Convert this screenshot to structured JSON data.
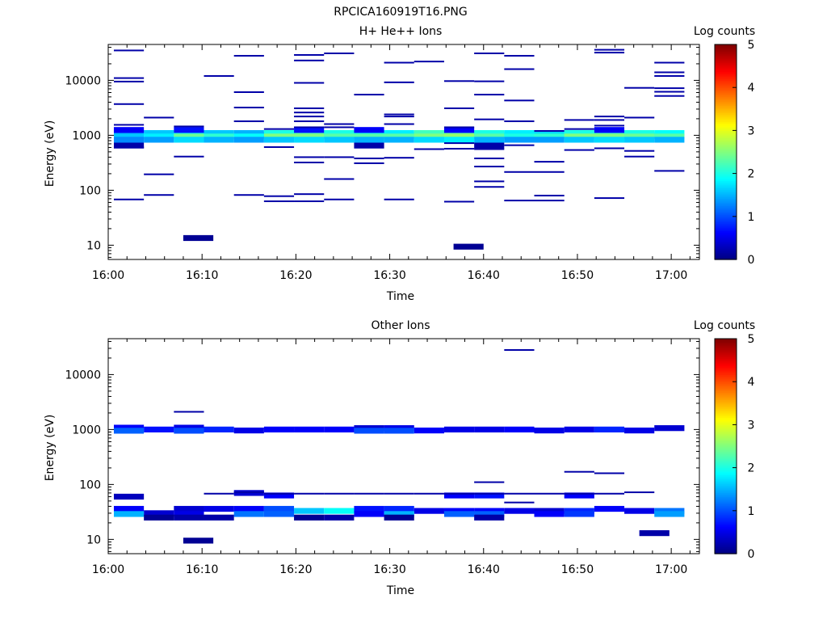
{
  "file_title": "RPCICA160919T16.PNG",
  "colors": {
    "axis": "#000000",
    "background": "#ffffff",
    "colormap": "jet"
  },
  "chart_data": [
    {
      "type": "heatmap",
      "title": "H+ He++ Ions",
      "xlabel": "Time",
      "ylabel": "Energy (eV)",
      "x_ticks": [
        "16:00",
        "16:10",
        "16:20",
        "16:30",
        "16:40",
        "16:50",
        "17:00"
      ],
      "x_range": [
        "16:00",
        "17:03"
      ],
      "y_ticks": [
        "10",
        "100",
        "1000",
        "10000"
      ],
      "y_scale": "log",
      "y_range_eV": [
        5.5,
        45000
      ],
      "colorbar": {
        "label": "Log counts",
        "min": 0,
        "max": 5,
        "ticks": [
          "0",
          "1",
          "2",
          "3",
          "4",
          "5"
        ]
      },
      "cell_width_min": 3.2,
      "cells": [
        [
          16.6,
          1000,
          0.9
        ],
        [
          19.8,
          1000,
          1.9
        ],
        [
          23.0,
          1000,
          2.6
        ],
        [
          26.2,
          1000,
          2.6
        ],
        [
          29.4,
          1000,
          2.6
        ],
        [
          32.6,
          1000,
          2.8
        ],
        [
          35.8,
          1000,
          2.8
        ],
        [
          39.0,
          1000,
          2.6
        ],
        [
          42.2,
          1000,
          2.6
        ],
        [
          45.4,
          1000,
          2.2
        ],
        [
          48.6,
          1000,
          2.4
        ],
        [
          51.8,
          1000,
          2.6
        ],
        [
          55.0,
          1000,
          2.7
        ],
        [
          58.2,
          1000,
          2.6
        ],
        [
          2.2,
          1100,
          1.4
        ],
        [
          5.4,
          1100,
          1.6
        ],
        [
          8.6,
          1100,
          1.8
        ],
        [
          11.8,
          1100,
          1.6
        ],
        [
          15.0,
          1100,
          1.5
        ],
        [
          18.2,
          1100,
          2.0
        ],
        [
          21.4,
          1100,
          2.2
        ],
        [
          24.6,
          1100,
          2.0
        ],
        [
          27.8,
          1100,
          1.9
        ],
        [
          31.0,
          1100,
          1.8
        ],
        [
          34.2,
          1100,
          2.2
        ],
        [
          37.4,
          1100,
          2.3
        ],
        [
          40.6,
          1100,
          2.0
        ],
        [
          43.8,
          1100,
          1.8
        ],
        [
          47.0,
          1100,
          1.7
        ],
        [
          50.2,
          1100,
          2.0
        ],
        [
          53.4,
          1100,
          2.1
        ],
        [
          56.6,
          1100,
          2.0
        ],
        [
          59.8,
          1100,
          1.9
        ],
        [
          2.2,
          950,
          1.6
        ],
        [
          5.4,
          950,
          1.8
        ],
        [
          8.6,
          950,
          2.4
        ],
        [
          11.8,
          950,
          2.1
        ],
        [
          15.0,
          950,
          1.9
        ],
        [
          18.2,
          950,
          2.5
        ],
        [
          21.4,
          950,
          2.5
        ],
        [
          24.6,
          950,
          2.3
        ],
        [
          27.8,
          950,
          2.3
        ],
        [
          31.0,
          950,
          2.3
        ],
        [
          34.2,
          950,
          2.5
        ],
        [
          37.4,
          950,
          2.6
        ],
        [
          40.6,
          950,
          2.3
        ],
        [
          43.8,
          950,
          2.0
        ],
        [
          47.0,
          950,
          2.1
        ],
        [
          50.2,
          950,
          2.5
        ],
        [
          53.4,
          950,
          2.5
        ],
        [
          56.6,
          950,
          2.4
        ],
        [
          59.8,
          950,
          2.3
        ],
        [
          2.2,
          830,
          1.3
        ],
        [
          5.4,
          830,
          1.4
        ],
        [
          8.6,
          830,
          1.7
        ],
        [
          11.8,
          830,
          1.5
        ],
        [
          15.0,
          830,
          1.4
        ],
        [
          18.2,
          830,
          1.6
        ],
        [
          21.4,
          830,
          1.7
        ],
        [
          24.6,
          830,
          1.6
        ],
        [
          27.8,
          830,
          1.5
        ],
        [
          31.0,
          830,
          1.5
        ],
        [
          34.2,
          830,
          1.7
        ],
        [
          37.4,
          830,
          1.8
        ],
        [
          40.6,
          830,
          1.5
        ],
        [
          43.8,
          830,
          1.4
        ],
        [
          47.0,
          830,
          1.4
        ],
        [
          50.2,
          830,
          1.6
        ],
        [
          53.4,
          830,
          1.7
        ],
        [
          56.6,
          830,
          1.6
        ],
        [
          59.8,
          830,
          1.5
        ],
        [
          2.2,
          1250,
          0.6
        ],
        [
          8.6,
          1250,
          0.7
        ],
        [
          21.4,
          1250,
          0.7
        ],
        [
          27.8,
          1250,
          0.6
        ],
        [
          37.4,
          1250,
          0.6
        ],
        [
          53.4,
          1250,
          0.6
        ],
        [
          2.2,
          650,
          0.2
        ],
        [
          27.8,
          650,
          0.2
        ],
        [
          40.6,
          650,
          0.2
        ],
        [
          9.6,
          13.5,
          0.1
        ],
        [
          38.4,
          9.4,
          0.1
        ]
      ],
      "lines": [
        [
          2.2,
          35000
        ],
        [
          2.2,
          11000
        ],
        [
          2.2,
          9500
        ],
        [
          2.2,
          3700
        ],
        [
          2.2,
          1550
        ],
        [
          2.2,
          600
        ],
        [
          2.2,
          68
        ],
        [
          5.4,
          2100
        ],
        [
          5.4,
          195
        ],
        [
          5.4,
          82
        ],
        [
          8.6,
          1450
        ],
        [
          8.6,
          410
        ],
        [
          11.8,
          12000
        ],
        [
          15.0,
          28000
        ],
        [
          15.0,
          6100
        ],
        [
          15.0,
          3200
        ],
        [
          15.0,
          1800
        ],
        [
          15.0,
          82
        ],
        [
          18.2,
          1300
        ],
        [
          18.2,
          610
        ],
        [
          18.2,
          78
        ],
        [
          18.2,
          63
        ],
        [
          21.4,
          29000
        ],
        [
          21.4,
          23000
        ],
        [
          21.4,
          9000
        ],
        [
          21.4,
          3100
        ],
        [
          21.4,
          2600
        ],
        [
          21.4,
          2200
        ],
        [
          21.4,
          1800
        ],
        [
          21.4,
          1400
        ],
        [
          21.4,
          400
        ],
        [
          21.4,
          320
        ],
        [
          21.4,
          85
        ],
        [
          21.4,
          63
        ],
        [
          24.6,
          31000
        ],
        [
          24.6,
          1600
        ],
        [
          24.6,
          1400
        ],
        [
          24.6,
          400
        ],
        [
          24.6,
          160
        ],
        [
          24.6,
          68
        ],
        [
          27.8,
          5500
        ],
        [
          27.8,
          380
        ],
        [
          27.8,
          310
        ],
        [
          31.0,
          21000
        ],
        [
          31.0,
          9200
        ],
        [
          31.0,
          2400
        ],
        [
          31.0,
          2200
        ],
        [
          31.0,
          1600
        ],
        [
          31.0,
          390
        ],
        [
          31.0,
          68
        ],
        [
          34.2,
          22000
        ],
        [
          34.2,
          560
        ],
        [
          37.4,
          9700
        ],
        [
          37.4,
          3100
        ],
        [
          37.4,
          1400
        ],
        [
          37.4,
          720
        ],
        [
          37.4,
          570
        ],
        [
          37.4,
          62
        ],
        [
          40.6,
          31000
        ],
        [
          40.6,
          9600
        ],
        [
          40.6,
          5500
        ],
        [
          40.6,
          1950
        ],
        [
          40.6,
          560
        ],
        [
          40.6,
          380
        ],
        [
          40.6,
          270
        ],
        [
          40.6,
          145
        ],
        [
          40.6,
          115
        ],
        [
          43.8,
          28000
        ],
        [
          43.8,
          16000
        ],
        [
          43.8,
          4300
        ],
        [
          43.8,
          1800
        ],
        [
          43.8,
          660
        ],
        [
          43.8,
          215
        ],
        [
          43.8,
          65
        ],
        [
          47.0,
          1200
        ],
        [
          47.0,
          330
        ],
        [
          47.0,
          215
        ],
        [
          47.0,
          80
        ],
        [
          47.0,
          65
        ],
        [
          50.2,
          1900
        ],
        [
          50.2,
          1300
        ],
        [
          50.2,
          540
        ],
        [
          53.4,
          36000
        ],
        [
          53.4,
          32000
        ],
        [
          53.4,
          2200
        ],
        [
          53.4,
          1900
        ],
        [
          53.4,
          1500
        ],
        [
          53.4,
          580
        ],
        [
          53.4,
          72
        ],
        [
          56.6,
          7300
        ],
        [
          56.6,
          2100
        ],
        [
          56.6,
          520
        ],
        [
          56.6,
          410
        ],
        [
          59.8,
          21000
        ],
        [
          59.8,
          14000
        ],
        [
          59.8,
          12000
        ],
        [
          59.8,
          7200
        ],
        [
          59.8,
          6200
        ],
        [
          59.8,
          5200
        ],
        [
          59.8,
          225
        ]
      ]
    },
    {
      "type": "heatmap",
      "title": "Other Ions",
      "xlabel": "Time",
      "ylabel": "Energy (eV)",
      "x_ticks": [
        "16:00",
        "16:10",
        "16:20",
        "16:30",
        "16:40",
        "16:50",
        "17:00"
      ],
      "x_range": [
        "16:00",
        "17:03"
      ],
      "y_ticks": [
        "10",
        "100",
        "1000",
        "10000"
      ],
      "y_scale": "log",
      "y_range_eV": [
        5.5,
        45000
      ],
      "colorbar": {
        "label": "Log counts",
        "min": 0,
        "max": 5,
        "ticks": [
          "0",
          "1",
          "2",
          "3",
          "4",
          "5"
        ]
      },
      "cell_width_min": 3.2,
      "cells": [
        [
          2.2,
          1080,
          0.6
        ],
        [
          5.4,
          1000,
          0.7
        ],
        [
          8.6,
          1080,
          0.5
        ],
        [
          11.8,
          1000,
          0.8
        ],
        [
          15.0,
          960,
          0.5
        ],
        [
          18.2,
          1000,
          0.6
        ],
        [
          21.4,
          1000,
          0.6
        ],
        [
          24.6,
          1000,
          0.6
        ],
        [
          27.8,
          1060,
          0.4
        ],
        [
          31.0,
          1060,
          0.5
        ],
        [
          34.2,
          960,
          0.6
        ],
        [
          37.4,
          1000,
          0.5
        ],
        [
          40.6,
          1000,
          0.5
        ],
        [
          43.8,
          1000,
          0.6
        ],
        [
          47.0,
          960,
          0.5
        ],
        [
          50.2,
          1000,
          0.5
        ],
        [
          53.4,
          1000,
          0.8
        ],
        [
          56.6,
          960,
          0.5
        ],
        [
          59.8,
          1060,
          0.4
        ],
        [
          2.2,
          950,
          1.1
        ],
        [
          8.6,
          950,
          1.0
        ],
        [
          27.8,
          950,
          1.0
        ],
        [
          31.0,
          950,
          1.0
        ],
        [
          2.2,
          60,
          0.3
        ],
        [
          15.0,
          70,
          0.4
        ],
        [
          18.2,
          63,
          0.6
        ],
        [
          37.4,
          63,
          0.6
        ],
        [
          40.6,
          63,
          0.7
        ],
        [
          50.2,
          63,
          0.6
        ],
        [
          2.2,
          36,
          0.6
        ],
        [
          5.4,
          30,
          0.4
        ],
        [
          8.6,
          36,
          0.4
        ],
        [
          11.8,
          36,
          0.5
        ],
        [
          15.0,
          36,
          0.6
        ],
        [
          18.2,
          36,
          1.0
        ],
        [
          21.4,
          33,
          1.6
        ],
        [
          24.6,
          33,
          1.9
        ],
        [
          27.8,
          36,
          0.7
        ],
        [
          31.0,
          36,
          0.8
        ],
        [
          34.2,
          33,
          0.5
        ],
        [
          37.4,
          33,
          0.6
        ],
        [
          40.6,
          33,
          0.6
        ],
        [
          43.8,
          33,
          0.5
        ],
        [
          47.0,
          33,
          0.4
        ],
        [
          50.2,
          33,
          0.8
        ],
        [
          53.4,
          36,
          0.6
        ],
        [
          56.6,
          33,
          0.5
        ],
        [
          59.8,
          33,
          1.2
        ],
        [
          2.2,
          29,
          1.5
        ],
        [
          8.6,
          29,
          0.5
        ],
        [
          15.0,
          29,
          1.2
        ],
        [
          18.2,
          29,
          1.1
        ],
        [
          27.8,
          29,
          0.6
        ],
        [
          31.0,
          29,
          1.5
        ],
        [
          37.4,
          29,
          1.1
        ],
        [
          40.6,
          29,
          1.1
        ],
        [
          47.0,
          29,
          0.6
        ],
        [
          50.2,
          29,
          0.9
        ],
        [
          59.8,
          29,
          1.4
        ],
        [
          5.4,
          25,
          0.1
        ],
        [
          8.6,
          25,
          0.2
        ],
        [
          11.8,
          25,
          0.2
        ],
        [
          21.4,
          25,
          0.1
        ],
        [
          24.6,
          25,
          0.2
        ],
        [
          31.0,
          25,
          0.1
        ],
        [
          40.6,
          25,
          0.2
        ],
        [
          9.6,
          9.5,
          0.1
        ],
        [
          58.2,
          13,
          0.2
        ]
      ],
      "lines": [
        [
          8.6,
          2100
        ],
        [
          11.8,
          68
        ],
        [
          15.0,
          72
        ],
        [
          18.2,
          68
        ],
        [
          21.4,
          68
        ],
        [
          24.6,
          68
        ],
        [
          27.8,
          68
        ],
        [
          31.0,
          68
        ],
        [
          34.2,
          68
        ],
        [
          37.4,
          68
        ],
        [
          40.6,
          68
        ],
        [
          43.8,
          68
        ],
        [
          47.0,
          68
        ],
        [
          50.2,
          68
        ],
        [
          53.4,
          68
        ],
        [
          56.6,
          72
        ],
        [
          40.6,
          110
        ],
        [
          43.8,
          47
        ],
        [
          43.8,
          28000
        ],
        [
          50.2,
          170
        ],
        [
          53.4,
          160
        ]
      ]
    }
  ]
}
